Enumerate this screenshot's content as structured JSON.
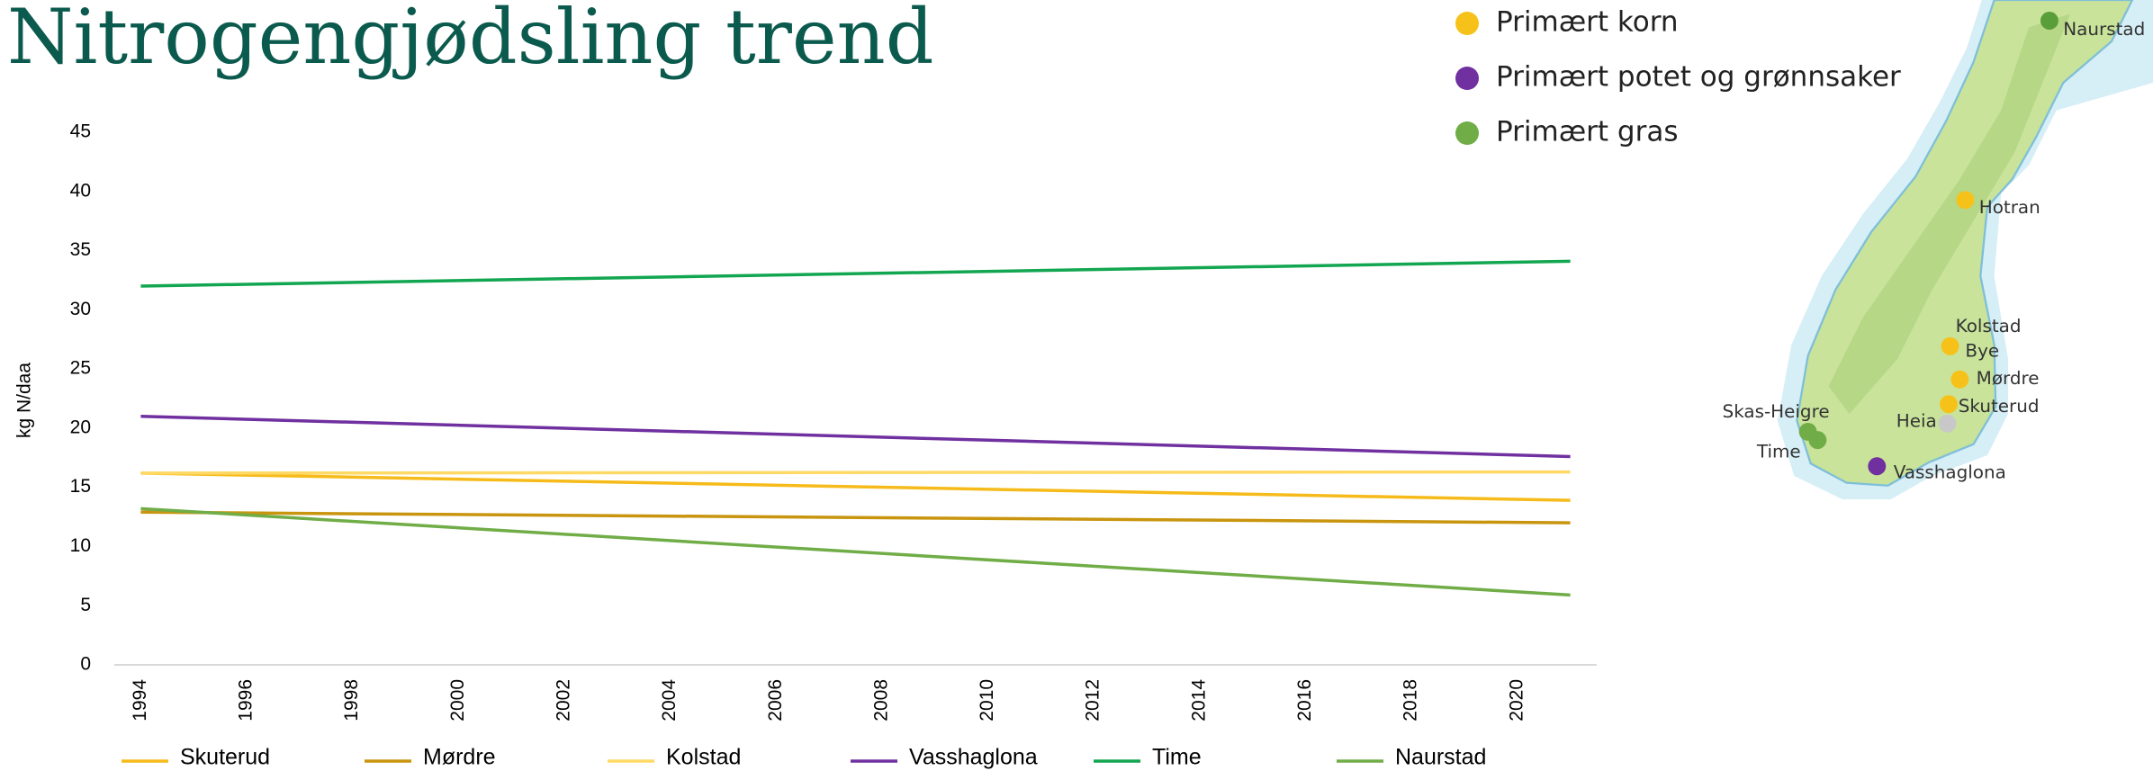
{
  "chart_data": {
    "type": "line",
    "title": "Nitrogengjødsling trend",
    "y_label": "kg N/daa",
    "x": [
      1994,
      2021
    ],
    "series": [
      {
        "name": "Skuterud",
        "color": "#f6bb1a",
        "values": [
          16.2,
          13.9
        ]
      },
      {
        "name": "Mørdre",
        "color": "#c9950f",
        "values": [
          12.9,
          12.0
        ]
      },
      {
        "name": "Kolstad",
        "color": "#ffd966",
        "values": [
          16.2,
          16.3
        ]
      },
      {
        "name": "Vasshaglona",
        "color": "#7030a0",
        "values": [
          21.0,
          17.6
        ]
      },
      {
        "name": "Time",
        "color": "#12a650",
        "values": [
          32.0,
          34.1
        ]
      },
      {
        "name": "Naurstad",
        "color": "#70ad47",
        "values": [
          13.2,
          5.9
        ]
      }
    ],
    "xlim": [
      1993.5,
      2021.5
    ],
    "xticks": [
      1994,
      1996,
      1998,
      2000,
      2002,
      2004,
      2006,
      2008,
      2010,
      2012,
      2014,
      2016,
      2018,
      2020
    ],
    "ylim": [
      0,
      45
    ],
    "yticks": [
      0,
      5,
      10,
      15,
      20,
      25,
      30,
      35,
      40,
      45
    ],
    "grid": false
  },
  "map_legend": [
    {
      "label": "Primært korn",
      "color": "#f6c21a"
    },
    {
      "label": "Primært potet og grønnsaker",
      "color": "#7030a0"
    },
    {
      "label": "Primært gras",
      "color": "#70ad47"
    }
  ],
  "map_sites": [
    {
      "label": "Naurstad",
      "color": "#5a9e3a"
    },
    {
      "label": "Hotran",
      "color": "#f6c21a"
    },
    {
      "label": "Kolstad",
      "color": "#f6c21a"
    },
    {
      "label": "Bye",
      "color": "#f6c21a"
    },
    {
      "label": "Mørdre",
      "color": "#f6c21a"
    },
    {
      "label": "Skuterud",
      "color": "#f6c21a"
    },
    {
      "label": "Skas-Heigre",
      "color": "#70ad47"
    },
    {
      "label": "Heia",
      "color": "#c8c8c8"
    },
    {
      "label": "Time",
      "color": "#70ad47"
    },
    {
      "label": "Vasshaglona",
      "color": "#7030a0"
    }
  ]
}
